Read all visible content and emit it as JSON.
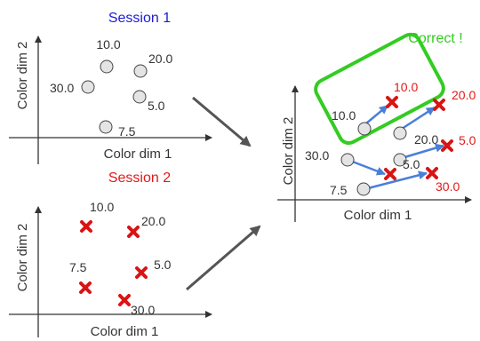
{
  "colors": {
    "session1": "#1a1ad6",
    "session2": "#e01919",
    "correct": "#33cc22",
    "blue_arrow": "#4a7fd8",
    "cross": "#d91414",
    "circle_fill": "#e4e4e4",
    "axis": "#333333",
    "flow_arrow": "#555555"
  },
  "panel_session1": {
    "title": "Session 1",
    "xlabel": "Color dim 1",
    "ylabel": "Color dim 2",
    "points": [
      "10.0",
      "20.0",
      "30.0",
      "5.0",
      "7.5"
    ],
    "marker": "circle"
  },
  "panel_session2": {
    "title": "Session 2",
    "xlabel": "Color dim 1",
    "ylabel": "Color dim 2",
    "points": [
      "10.0",
      "20.0",
      "7.5",
      "5.0",
      "30.0"
    ],
    "marker": "cross"
  },
  "panel_result": {
    "badge": "Correct !",
    "xlabel": "Color dim 1",
    "ylabel": "Color dim 2",
    "circle_labels": [
      "10.0",
      "20.0",
      "30.0",
      "5.0",
      "7.5"
    ],
    "cross_labels": [
      "10.0",
      "20.0",
      "5.0",
      "30.0"
    ]
  }
}
